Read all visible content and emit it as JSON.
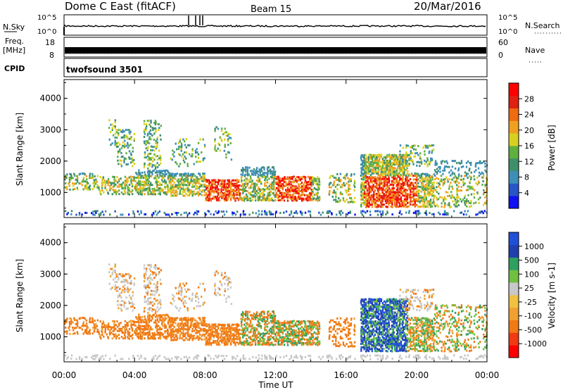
{
  "header": {
    "station": "Dome C East (fitACF)",
    "beam": "Beam 15",
    "date": "20/Mar/2016"
  },
  "top_panels": {
    "nsky": {
      "label": "N.Sky",
      "tick_top": "10^5",
      "tick_bottom": "10^0"
    },
    "nsearch": {
      "label": "N.Search",
      "tick_top": "10^5",
      "tick_bottom": "10^0"
    },
    "freq": {
      "label_line1": "Freq.",
      "label_line2": "[MHz]",
      "tick_top": "18",
      "tick_bottom": "8"
    },
    "nave": {
      "label": "Nave",
      "tick_top": "60",
      "tick_bottom": "0"
    },
    "cpid": {
      "label": "CPID",
      "value": "twofsound 3501"
    }
  },
  "colors": {
    "power_scale": [
      "#1010f0",
      "#2855c8",
      "#3d8fb8",
      "#3f8f6a",
      "#60b040",
      "#d8d020",
      "#f0a020",
      "#f06a10",
      "#e02010",
      "#ff0000"
    ],
    "velocity_scale": [
      "#ff0000",
      "#f03a14",
      "#f07a14",
      "#f0a030",
      "#f0c040",
      "#c8c8c8",
      "#70c040",
      "#30a060",
      "#2040b0",
      "#2050d8"
    ]
  },
  "chart_data": [
    {
      "type": "heatmap",
      "name": "Power",
      "ylabel": "Slant Range [km]",
      "yticks": [
        "4000",
        "3000",
        "2000",
        "1000"
      ],
      "ylim": [
        200,
        4600
      ],
      "colorbar_label": "Power [dB]",
      "colorbar_ticks": [
        "28",
        "24",
        "20",
        "16",
        "12",
        "8",
        "4"
      ],
      "colorbar_range": [
        0,
        32
      ]
    },
    {
      "type": "heatmap",
      "name": "Velocity",
      "ylabel": "Slant Range [km]",
      "yticks": [
        "4000",
        "3000",
        "2000",
        "1000"
      ],
      "ylim": [
        200,
        4600
      ],
      "xlabel": "Time UT",
      "xticks": [
        "00:00",
        "04:00",
        "08:00",
        "12:00",
        "16:00",
        "20:00",
        "00:00"
      ],
      "xlim": [
        0,
        24
      ],
      "colorbar_label": "Velocity [m s-1]",
      "colorbar_ticks": [
        "1000",
        "500",
        "100",
        "25",
        "-25",
        "-100",
        "-500",
        "-1000"
      ]
    }
  ]
}
